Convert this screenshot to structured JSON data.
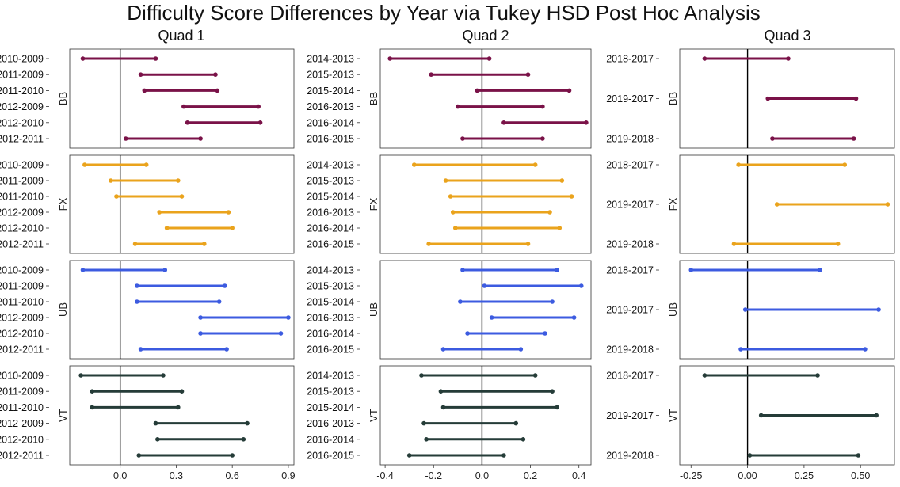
{
  "chart_data": {
    "type": "interval",
    "title": "Difficulty Score Differences by Year via Tukey HSD Post Hoc Analysis",
    "reference_line": 0,
    "grid": false,
    "colors": {
      "BB": "#7a1248",
      "FX": "#eaa31c",
      "UB": "#3c5be0",
      "VT": "#253c38"
    },
    "panels": [
      {
        "quad": "Quad 1",
        "xlim": [
          -0.27,
          0.93
        ],
        "ticks": [
          0.0,
          0.3,
          0.6,
          0.9
        ],
        "tick_labels": [
          "0.0",
          "0.3",
          "0.6",
          "0.9"
        ],
        "comparisons": [
          "2010-2009",
          "2011-2009",
          "2011-2010",
          "2012-2009",
          "2012-2010",
          "2012-2011"
        ],
        "events": {
          "BB": [
            [
              -0.2,
              0.19
            ],
            [
              0.11,
              0.51
            ],
            [
              0.13,
              0.52
            ],
            [
              0.34,
              0.74
            ],
            [
              0.36,
              0.75
            ],
            [
              0.03,
              0.43
            ]
          ],
          "FX": [
            [
              -0.19,
              0.14
            ],
            [
              -0.05,
              0.31
            ],
            [
              -0.02,
              0.33
            ],
            [
              0.21,
              0.58
            ],
            [
              0.25,
              0.6
            ],
            [
              0.08,
              0.45
            ]
          ],
          "UB": [
            [
              -0.2,
              0.24
            ],
            [
              0.09,
              0.56
            ],
            [
              0.09,
              0.53
            ],
            [
              0.43,
              0.9
            ],
            [
              0.43,
              0.86
            ],
            [
              0.11,
              0.57
            ]
          ],
          "VT": [
            [
              -0.21,
              0.23
            ],
            [
              -0.15,
              0.33
            ],
            [
              -0.15,
              0.31
            ],
            [
              0.19,
              0.68
            ],
            [
              0.2,
              0.66
            ],
            [
              0.1,
              0.6
            ]
          ]
        }
      },
      {
        "quad": "Quad 2",
        "xlim": [
          -0.42,
          0.45
        ],
        "ticks": [
          -0.4,
          -0.2,
          0.0,
          0.2,
          0.4
        ],
        "tick_labels": [
          "-0.4",
          "-0.2",
          "0.0",
          "0.2",
          "0.4"
        ],
        "comparisons": [
          "2014-2013",
          "2015-2013",
          "2015-2014",
          "2016-2013",
          "2016-2014",
          "2016-2015"
        ],
        "events": {
          "BB": [
            [
              -0.38,
              0.03
            ],
            [
              -0.21,
              0.19
            ],
            [
              -0.02,
              0.36
            ],
            [
              -0.1,
              0.25
            ],
            [
              0.09,
              0.43
            ],
            [
              -0.08,
              0.25
            ]
          ],
          "FX": [
            [
              -0.28,
              0.22
            ],
            [
              -0.15,
              0.33
            ],
            [
              -0.13,
              0.37
            ],
            [
              -0.12,
              0.28
            ],
            [
              -0.11,
              0.32
            ],
            [
              -0.22,
              0.19
            ]
          ],
          "UB": [
            [
              -0.08,
              0.31
            ],
            [
              0.01,
              0.41
            ],
            [
              -0.09,
              0.29
            ],
            [
              0.04,
              0.38
            ],
            [
              -0.06,
              0.26
            ],
            [
              -0.16,
              0.16
            ]
          ],
          "VT": [
            [
              -0.25,
              0.22
            ],
            [
              -0.17,
              0.29
            ],
            [
              -0.16,
              0.31
            ],
            [
              -0.24,
              0.14
            ],
            [
              -0.23,
              0.17
            ],
            [
              -0.3,
              0.09
            ]
          ]
        }
      },
      {
        "quad": "Quad 3",
        "xlim": [
          -0.3,
          0.65
        ],
        "ticks": [
          -0.25,
          0.0,
          0.25,
          0.5
        ],
        "tick_labels": [
          "-0.25",
          "0.00",
          "0.25",
          "0.50"
        ],
        "comparisons": [
          "2018-2017",
          "2019-2017",
          "2019-2018"
        ],
        "events": {
          "BB": [
            [
              -0.19,
              0.18
            ],
            [
              0.09,
              0.48
            ],
            [
              0.11,
              0.47
            ]
          ],
          "FX": [
            [
              -0.04,
              0.43
            ],
            [
              0.13,
              0.62
            ],
            [
              -0.06,
              0.4
            ]
          ],
          "UB": [
            [
              -0.25,
              0.32
            ],
            [
              -0.01,
              0.58
            ],
            [
              -0.03,
              0.52
            ]
          ],
          "VT": [
            [
              -0.19,
              0.31
            ],
            [
              0.06,
              0.57
            ],
            [
              0.01,
              0.49
            ]
          ]
        }
      }
    ],
    "event_order": [
      "BB",
      "FX",
      "UB",
      "VT"
    ]
  }
}
